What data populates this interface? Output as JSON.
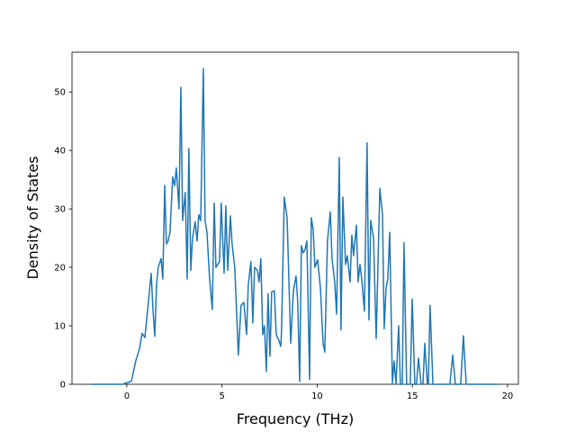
{
  "chart_data": {
    "type": "line",
    "xlabel": "Frequency (THz)",
    "ylabel": "Density of States",
    "x": [
      -1.84,
      -0.24,
      0.24,
      0.47,
      0.66,
      0.8,
      0.95,
      1.13,
      1.28,
      1.37,
      1.47,
      1.56,
      1.65,
      1.8,
      1.89,
      1.99,
      2.08,
      2.17,
      2.27,
      2.41,
      2.51,
      2.6,
      2.74,
      2.84,
      2.93,
      3.07,
      3.17,
      3.26,
      3.36,
      3.45,
      3.59,
      3.69,
      3.78,
      3.88,
      4.02,
      4.11,
      4.21,
      4.35,
      4.49,
      4.59,
      4.68,
      4.87,
      4.96,
      5.11,
      5.2,
      5.3,
      5.44,
      5.53,
      5.67,
      5.86,
      6.0,
      6.15,
      6.29,
      6.38,
      6.52,
      6.62,
      6.71,
      6.86,
      6.95,
      7.04,
      7.14,
      7.23,
      7.33,
      7.42,
      7.52,
      7.61,
      7.75,
      7.85,
      7.94,
      8.09,
      8.13,
      8.27,
      8.42,
      8.61,
      8.75,
      8.89,
      8.98,
      9.08,
      9.17,
      9.27,
      9.36,
      9.46,
      9.6,
      9.69,
      9.79,
      9.88,
      10.02,
      10.17,
      10.31,
      10.4,
      10.54,
      10.69,
      10.78,
      10.92,
      11.02,
      11.16,
      11.25,
      11.35,
      11.49,
      11.58,
      11.73,
      11.82,
      11.91,
      12.06,
      12.15,
      12.25,
      12.34,
      12.48,
      12.62,
      12.72,
      12.81,
      12.96,
      13.1,
      13.29,
      13.43,
      13.52,
      13.62,
      13.71,
      13.81,
      13.95,
      14.04,
      14.14,
      14.28,
      14.37,
      14.47,
      14.56,
      14.7,
      14.89,
      14.99,
      15.13,
      15.22,
      15.32,
      15.46,
      15.56,
      15.65,
      15.79,
      15.84,
      15.93,
      16.08,
      16.97,
      17.12,
      17.26,
      17.54,
      17.68,
      17.83,
      19.48
    ],
    "series": [
      {
        "color": "#1f77b4",
        "values": [
          0,
          0,
          0.5,
          4,
          6,
          8.7,
          8,
          14,
          19,
          13,
          8.2,
          17,
          20,
          21.5,
          18,
          34,
          24,
          24.5,
          26,
          35.5,
          34,
          37,
          30,
          50.8,
          28,
          32.8,
          18,
          40.3,
          19.5,
          25,
          27.8,
          24.5,
          29,
          28,
          54,
          28,
          26,
          18,
          12.8,
          31,
          20,
          21,
          31,
          19,
          30.5,
          19.5,
          28.8,
          24,
          20,
          5,
          13.5,
          14,
          8.5,
          17,
          21,
          10.5,
          20,
          19.5,
          17.5,
          21.5,
          8.5,
          10,
          2.2,
          15.5,
          4.8,
          15.8,
          16,
          8.5,
          7.9,
          6.5,
          9.5,
          32,
          28.5,
          7,
          16,
          18.5,
          14,
          0.5,
          23.7,
          22.5,
          23,
          24.5,
          0.8,
          28.5,
          26.5,
          20,
          21.3,
          16.5,
          7,
          5.5,
          24.5,
          29.5,
          21.5,
          17.5,
          12,
          38.8,
          9.3,
          32,
          20.5,
          22,
          17.5,
          25.5,
          22,
          27.2,
          17.5,
          20.5,
          18,
          12.5,
          41.3,
          11,
          28,
          25,
          7.8,
          33.5,
          29,
          9.5,
          16.5,
          18,
          26,
          0.2,
          4,
          0,
          10,
          0,
          0,
          24.2,
          0,
          0,
          14.6,
          0,
          0,
          4.5,
          0,
          0,
          7,
          0,
          0,
          13.5,
          0,
          0,
          5,
          0,
          0,
          8.3,
          0,
          0
        ]
      }
    ],
    "xlim": [
      -2.88,
      20.57
    ],
    "ylim": [
      0,
      56.8
    ],
    "xticks": [
      0,
      5,
      10,
      15,
      20
    ],
    "yticks": [
      0,
      10,
      20,
      30,
      40,
      50
    ]
  }
}
